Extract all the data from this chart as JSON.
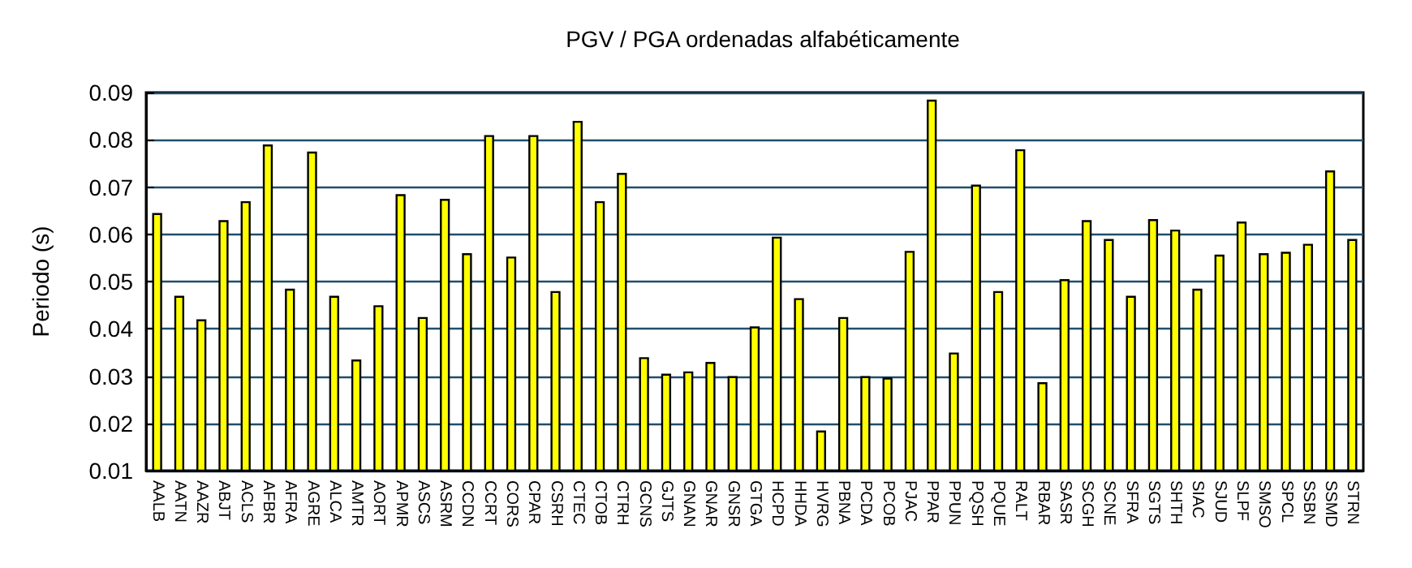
{
  "chart_data": {
    "type": "bar",
    "title": "PGV / PGA ordenadas alfabéticamente",
    "ylabel": "Periodo (s)",
    "categories": [
      "AALB",
      "AATN",
      "AAZR",
      "ABJT",
      "ACLS",
      "AFBR",
      "AFRA",
      "AGRE",
      "ALCA",
      "AMTR",
      "AORT",
      "APMR",
      "ASCS",
      "ASRM",
      "CCDN",
      "CCRT",
      "CORS",
      "CPAR",
      "CSRH",
      "CTEC",
      "CTOB",
      "CTRH",
      "GCNS",
      "GJTS",
      "GNAN",
      "GNAR",
      "GNSR",
      "GTGA",
      "HCPD",
      "HHDA",
      "HVRG",
      "PBNA",
      "PCDA",
      "PCOB",
      "PJAC",
      "PPAR",
      "PPUN",
      "PQSH",
      "PQUE",
      "RALT",
      "RBAR",
      "SASR",
      "SCGH",
      "SCNE",
      "SFRA",
      "SGTS",
      "SHTH",
      "SIAC",
      "SJUD",
      "SLPF",
      "SMSO",
      "SPCL",
      "SSBN",
      "SSMD",
      "STRN"
    ],
    "values": [
      0.0645,
      0.047,
      0.042,
      0.063,
      0.067,
      0.079,
      0.0485,
      0.0775,
      0.047,
      0.0335,
      0.045,
      0.0685,
      0.0425,
      0.0675,
      0.056,
      0.081,
      0.0553,
      0.081,
      0.048,
      0.084,
      0.067,
      0.073,
      0.034,
      0.0305,
      0.031,
      0.033,
      0.03,
      0.0405,
      0.0595,
      0.0465,
      0.0185,
      0.0425,
      0.03,
      0.0297,
      0.0565,
      0.0885,
      0.035,
      0.0705,
      0.048,
      0.078,
      0.0287,
      0.0505,
      0.063,
      0.059,
      0.047,
      0.0632,
      0.061,
      0.0485,
      0.0557,
      0.0627,
      0.056,
      0.0563,
      0.058,
      0.0735,
      0.059
    ],
    "color": "#ffff00",
    "ylim": [
      0.01,
      0.09
    ],
    "yticks": [
      0.01,
      0.02,
      0.03,
      0.04,
      0.05,
      0.06,
      0.07,
      0.08,
      0.09
    ],
    "grid": "y"
  }
}
